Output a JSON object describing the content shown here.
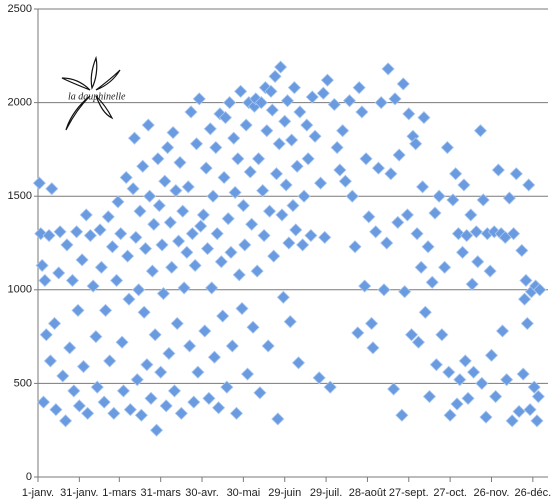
{
  "chart_data": {
    "type": "scatter",
    "annotation": "la dauphinelle",
    "color": "#6a9be0",
    "grid": true,
    "xlim": [
      0,
      370
    ],
    "ylim": [
      0,
      2500
    ],
    "yticks": [
      0,
      500,
      1000,
      1500,
      2000,
      2500
    ],
    "xticks": [
      {
        "value": 0,
        "label": "1-janv."
      },
      {
        "value": 30,
        "label": "31-janv."
      },
      {
        "value": 59,
        "label": "1-mars"
      },
      {
        "value": 89,
        "label": "31-mars"
      },
      {
        "value": 119,
        "label": "30-avr."
      },
      {
        "value": 149,
        "label": "30-mai"
      },
      {
        "value": 179,
        "label": "29-juin"
      },
      {
        "value": 209,
        "label": "29-juil."
      },
      {
        "value": 239,
        "label": "28-août"
      },
      {
        "value": 269,
        "label": "27-sept."
      },
      {
        "value": 299,
        "label": "27-oct."
      },
      {
        "value": 329,
        "label": "26-nov."
      },
      {
        "value": 359,
        "label": "26-déc."
      }
    ],
    "x": [
      1,
      2,
      3,
      4,
      5,
      6,
      8,
      9,
      10,
      12,
      13,
      15,
      16,
      18,
      20,
      21,
      23,
      25,
      26,
      28,
      29,
      30,
      32,
      33,
      35,
      36,
      38,
      40,
      42,
      43,
      45,
      46,
      48,
      49,
      51,
      52,
      54,
      55,
      57,
      58,
      60,
      61,
      62,
      64,
      65,
      66,
      67,
      69,
      70,
      71,
      72,
      73,
      74,
      75,
      76,
      77,
      78,
      79,
      80,
      81,
      82,
      83,
      84,
      85,
      86,
      87,
      88,
      89,
      90,
      91,
      92,
      93,
      94,
      95,
      96,
      97,
      98,
      99,
      100,
      101,
      102,
      103,
      104,
      105,
      106,
      108,
      109,
      110,
      111,
      112,
      113,
      114,
      115,
      116,
      117,
      118,
      120,
      121,
      122,
      123,
      124,
      125,
      126,
      127,
      128,
      129,
      130,
      131,
      132,
      133,
      134,
      135,
      136,
      137,
      138,
      139,
      140,
      141,
      142,
      143,
      144,
      145,
      146,
      147,
      148,
      149,
      150,
      151,
      152,
      153,
      154,
      155,
      156,
      157,
      158,
      159,
      160,
      161,
      162,
      163,
      164,
      165,
      166,
      167,
      168,
      169,
      170,
      171,
      172,
      173,
      174,
      175,
      176,
      177,
      178,
      179,
      180,
      181,
      182,
      183,
      184,
      185,
      186,
      187,
      188,
      189,
      190,
      192,
      193,
      195,
      196,
      198,
      199,
      201,
      204,
      205,
      207,
      208,
      210,
      212,
      215,
      217,
      219,
      221,
      223,
      226,
      228,
      230,
      232,
      233,
      235,
      237,
      238,
      240,
      242,
      243,
      245,
      247,
      249,
      251,
      253,
      254,
      256,
      258,
      259,
      261,
      262,
      264,
      265,
      266,
      268,
      269,
      271,
      272,
      274,
      275,
      276,
      278,
      279,
      280,
      281,
      283,
      284,
      286,
      288,
      289,
      291,
      293,
      295,
      297,
      298,
      299,
      301,
      303,
      304,
      305,
      306,
      308,
      309,
      310,
      311,
      312,
      314,
      315,
      316,
      318,
      319,
      321,
      322,
      323,
      325,
      326,
      328,
      329,
      331,
      332,
      334,
      336,
      337,
      339,
      340,
      342,
      344,
      345,
      347,
      349,
      351,
      352,
      353,
      354,
      355,
      356,
      357,
      358,
      360,
      361,
      362,
      363,
      364
    ],
    "values": [
      1570,
      1300,
      1130,
      400,
      1050,
      760,
      1290,
      620,
      1540,
      820,
      360,
      1090,
      1310,
      540,
      300,
      1240,
      690,
      1050,
      460,
      1310,
      890,
      380,
      1160,
      590,
      1400,
      340,
      1290,
      1020,
      750,
      480,
      1320,
      1120,
      400,
      890,
      1390,
      620,
      1230,
      340,
      1050,
      1470,
      1300,
      720,
      460,
      1600,
      1180,
      950,
      360,
      1540,
      1810,
      1280,
      520,
      1000,
      1420,
      330,
      1660,
      880,
      1220,
      600,
      1880,
      1500,
      420,
      1100,
      1350,
      760,
      250,
      1700,
      1450,
      560,
      1240,
      980,
      1580,
      380,
      1760,
      660,
      1360,
      1120,
      1840,
      460,
      1530,
      820,
      1260,
      1680,
      340,
      1420,
      1010,
      1200,
      1550,
      700,
      1950,
      1300,
      400,
      1130,
      1780,
      560,
      2020,
      1340,
      1400,
      780,
      1650,
      1220,
      420,
      1860,
      1010,
      1500,
      640,
      1760,
      1300,
      370,
      1940,
      1150,
      860,
      1600,
      1920,
      480,
      1380,
      2000,
      1200,
      700,
      1810,
      1520,
      340,
      1700,
      1080,
      2060,
      900,
      1450,
      1240,
      1880,
      550,
      2000,
      1630,
      1350,
      800,
      1980,
      2020,
      1100,
      1700,
      450,
      2000,
      1530,
      1290,
      2080,
      1850,
      700,
      1420,
      2060,
      1960,
      1180,
      2140,
      1620,
      310,
      1780,
      2190,
      1400,
      960,
      1900,
      1560,
      2010,
      1250,
      830,
      1800,
      1450,
      2080,
      1320,
      1660,
      610,
      1950,
      1240,
      1500,
      1880,
      1700,
      1290,
      2030,
      1820,
      530,
      1570,
      2050,
      1280,
      2120,
      480,
      1990,
      1760,
      1640,
      1850,
      1580,
      2010,
      1500,
      1230,
      770,
      2080,
      1950,
      1020,
      1700,
      1390,
      820,
      690,
      1310,
      1650,
      2000,
      1000,
      1250,
      2180,
      1620,
      470,
      2020,
      1360,
      1720,
      330,
      2100,
      990,
      1400,
      1940,
      760,
      1820,
      1780,
      1300,
      720,
      1120,
      1550,
      1920,
      880,
      1230,
      430,
      1040,
      1410,
      600,
      1500,
      760,
      1120,
      1760,
      560,
      330,
      1480,
      1620,
      390,
      1300,
      520,
      1200,
      1560,
      620,
      1290,
      420,
      1400,
      1030,
      560,
      1310,
      1150,
      1850,
      500,
      1480,
      320,
      1300,
      1100,
      650,
      1310,
      430,
      1640,
      1300,
      780,
      1280,
      520,
      1490,
      300,
      1300,
      1620,
      350,
      1210,
      550,
      950,
      1050,
      820,
      1560,
      360,
      990,
      480,
      1020,
      300,
      430,
      1000
    ]
  }
}
